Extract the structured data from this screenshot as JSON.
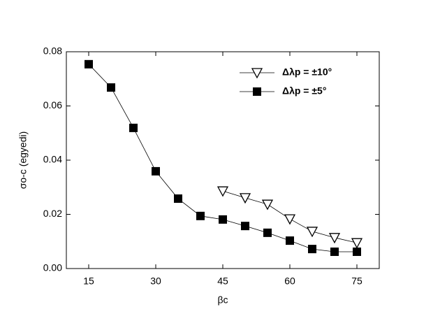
{
  "chart_data": {
    "type": "line",
    "xlabel": "βc",
    "ylabel": "σo-c (egyedi)",
    "xlim": [
      10,
      80
    ],
    "ylim": [
      0,
      0.08
    ],
    "xticks": [
      15,
      30,
      45,
      60,
      75
    ],
    "yticks": [
      {
        "value": 0,
        "label": "0.00"
      },
      {
        "value": 0.02,
        "label": "0.02"
      },
      {
        "value": 0.04,
        "label": "0.04"
      },
      {
        "value": 0.06,
        "label": "0.06"
      },
      {
        "value": 0.08,
        "label": "0.08"
      }
    ],
    "legend": "upper right",
    "series": [
      {
        "name": "Δλp = ±10°",
        "color": "#000000",
        "marker": "triangle-down-open",
        "x": [
          45,
          50,
          55,
          60,
          65,
          70,
          75
        ],
        "values": [
          0.0286,
          0.0261,
          0.0237,
          0.0183,
          0.0137,
          0.0114,
          0.0095
        ]
      },
      {
        "name": "Δλp = ±5°",
        "color": "#000000",
        "marker": "square",
        "x": [
          15,
          20,
          25,
          30,
          35,
          40,
          45,
          50,
          55,
          60,
          65,
          70,
          75
        ],
        "values": [
          0.0754,
          0.0668,
          0.0519,
          0.0359,
          0.0258,
          0.0194,
          0.0181,
          0.0157,
          0.0132,
          0.0103,
          0.0072,
          0.0062,
          0.0062
        ]
      }
    ]
  }
}
